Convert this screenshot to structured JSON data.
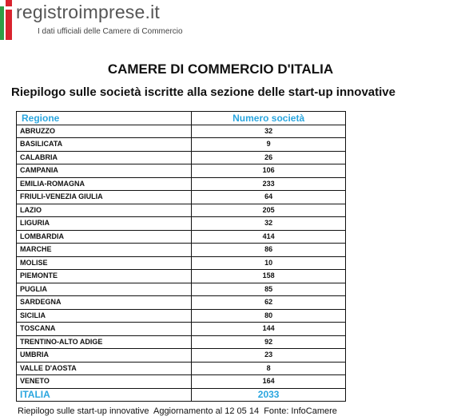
{
  "header": {
    "brand": "registroimprese.it",
    "tagline": "I dati ufficiali delle Camere di Commercio"
  },
  "title": "CAMERE DI COMMERCIO D'ITALIA",
  "subtitle": "Riepilogo sulle società iscritte alla sezione delle start-up innovative",
  "table": {
    "columns": [
      "Regione",
      "Numero società"
    ],
    "rows": [
      [
        "ABRUZZO",
        32
      ],
      [
        "BASILICATA",
        9
      ],
      [
        "CALABRIA",
        26
      ],
      [
        "CAMPANIA",
        106
      ],
      [
        "EMILIA-ROMAGNA",
        233
      ],
      [
        "FRIULI-VENEZIA GIULIA",
        64
      ],
      [
        "LAZIO",
        205
      ],
      [
        "LIGURIA",
        32
      ],
      [
        "LOMBARDIA",
        414
      ],
      [
        "MARCHE",
        86
      ],
      [
        "MOLISE",
        10
      ],
      [
        "PIEMONTE",
        158
      ],
      [
        "PUGLIA",
        85
      ],
      [
        "SARDEGNA",
        62
      ],
      [
        "SICILIA",
        80
      ],
      [
        "TOSCANA",
        144
      ],
      [
        "TRENTINO-ALTO ADIGE",
        92
      ],
      [
        "UMBRIA",
        23
      ],
      [
        "VALLE D'AOSTA",
        8
      ],
      [
        "VENETO",
        164
      ]
    ],
    "total": [
      "ITALIA",
      2033
    ]
  },
  "footer": "Riepilogo sulle start-up innovative  Aggiornamento al 12 05 14  Fonte: InfoCamere"
}
